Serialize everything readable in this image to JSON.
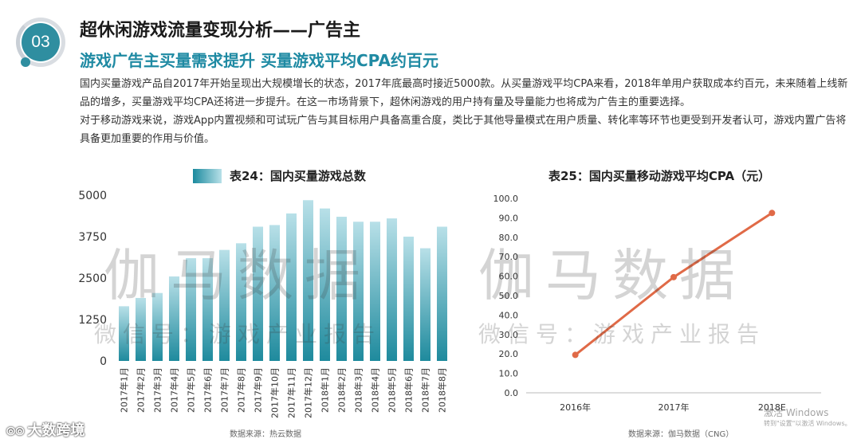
{
  "header": {
    "section_number": "03",
    "title": "超休闲游戏流量变现分析——广告主",
    "subtitle": "游戏广告主买量需求提升  买量游戏平均CPA约百元"
  },
  "intro": {
    "paragraph_1": "国内买量游戏产品自2017年开始呈现出大规模增长的状态，2017年底最高时接近5000款。从买量游戏平均CPA来看，2018年单用户获取成本约百元，未来随着上线新品的增多，买量游戏平均CPA还将进一步提升。在这一市场背景下，超休闲游戏的用户持有量及导量能力也将成为广告主的重要选择。",
    "paragraph_2": "对于移动游戏来说，游戏App内置视频和可试玩广告与其目标用户具备高重合度，类比于其他导量模式在用户质量、转化率等环节也更受到开发者认可，游戏内置广告将具备更加重要的作用与价值。"
  },
  "chart_data": [
    {
      "type": "bar",
      "title": "表24：国内买量游戏总数",
      "categories": [
        "2017年1月",
        "2017年2月",
        "2017年3月",
        "2017年4月",
        "2017年5月",
        "2017年6月",
        "2017年7月",
        "2017年8月",
        "2017年9月",
        "2017年10月",
        "2017年11月",
        "2017年12月",
        "2018年1月",
        "2018年2月",
        "2018年3月",
        "2018年4月",
        "2018年5月",
        "2018年6月",
        "2018年7月",
        "2018年8月"
      ],
      "values": [
        1650,
        1900,
        2050,
        2550,
        3100,
        3100,
        3350,
        3550,
        4050,
        4100,
        4450,
        4850,
        4600,
        4350,
        4200,
        4200,
        4300,
        3750,
        3400,
        4050
      ],
      "yticks": [
        "0",
        "1250",
        "2500",
        "3750",
        "5000"
      ],
      "ylim": [
        0,
        5000
      ],
      "grid": false,
      "bar_color": "#2a91a3",
      "source": "数据来源：热云数据"
    },
    {
      "type": "line",
      "title": "表25：国内买量移动游戏平均CPA（元）",
      "categories": [
        "2016年",
        "2017年",
        "2018E"
      ],
      "values": [
        19.5,
        59.5,
        92.5
      ],
      "yticks": [
        "0.0",
        "10.0",
        "20.0",
        "30.0",
        "40.0",
        "50.0",
        "60.0",
        "70.0",
        "80.0",
        "90.0",
        "100.0"
      ],
      "ylim": [
        0,
        100
      ],
      "grid": false,
      "line_color": "#e06a47",
      "source": "数据来源：伽马数据（CNG）"
    }
  ],
  "watermarks": {
    "big_text": "伽马数据",
    "small_text": "微信号：游戏产业报告",
    "windows_line1": "激活 Windows",
    "windows_line2": "转到\"设置\"以激活 Windows。"
  },
  "footer": {
    "logo_mark": "⦾⦾",
    "logo_text": "大数跨境"
  }
}
